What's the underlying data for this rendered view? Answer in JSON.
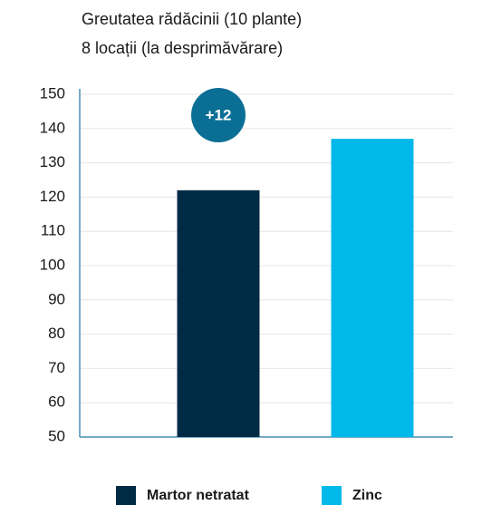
{
  "chart_data": {
    "type": "bar",
    "title": [
      "Greutatea rădăcinii (10 plante)",
      "8 locații (la desprimăvărare)"
    ],
    "series": [
      {
        "name": "Martor netratat",
        "color": "#002b45",
        "values": [
          122
        ]
      },
      {
        "name": "Zinc",
        "color": "#00b8ea",
        "values": [
          137
        ]
      }
    ],
    "annotation": "+12",
    "annotation_color": "#0b6f95",
    "ylim": [
      50,
      150
    ],
    "yticks": [
      50,
      60,
      70,
      80,
      90,
      100,
      110,
      120,
      130,
      140,
      150
    ],
    "grid": true
  }
}
